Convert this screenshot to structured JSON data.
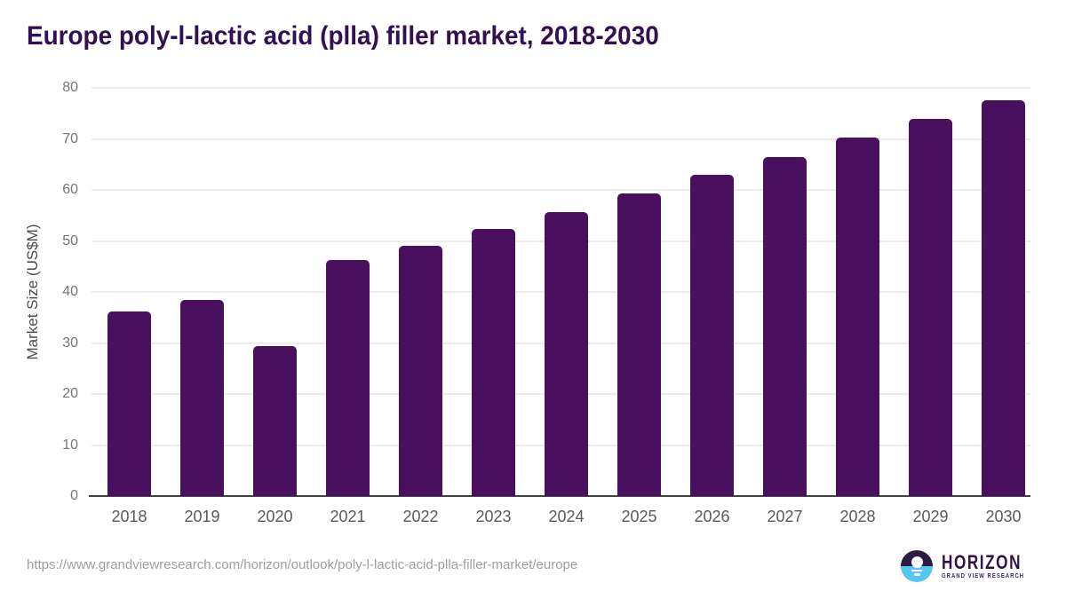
{
  "title": "Europe poly-l-lactic acid (plla) filler market, 2018-2030",
  "chart_data": {
    "type": "bar",
    "categories": [
      "2018",
      "2019",
      "2020",
      "2021",
      "2022",
      "2023",
      "2024",
      "2025",
      "2026",
      "2027",
      "2028",
      "2029",
      "2030"
    ],
    "values": [
      36.1,
      38.4,
      29.4,
      46.2,
      49.0,
      52.3,
      55.7,
      59.3,
      62.9,
      66.5,
      70.2,
      73.9,
      77.5
    ],
    "title": "Europe poly-l-lactic acid (plla) filler market, 2018-2030",
    "xlabel": "",
    "ylabel": "Market Size (US$M)",
    "ylim": [
      0,
      80
    ],
    "y_ticks": [
      0,
      10,
      20,
      30,
      40,
      50,
      60,
      70,
      80
    ],
    "grid": "horizontal",
    "legend": "none",
    "bar_color": "#491060"
  },
  "footer": {
    "source_url": "https://www.grandviewresearch.com/horizon/outlook/poly-l-lactic-acid-plla-filler-market/europe",
    "brand_name": "HORIZON",
    "brand_tagline": "GRAND VIEW RESEARCH"
  },
  "colors": {
    "title_text": "#33104f",
    "bar": "#491060",
    "axis": "#424242",
    "gridline": "#ececec",
    "y_tick_label": "#757575",
    "x_tick_label": "#595959",
    "url_text": "#9e9e9e",
    "logo_dark": "#2b1a45",
    "logo_blue": "#59c6f1"
  }
}
